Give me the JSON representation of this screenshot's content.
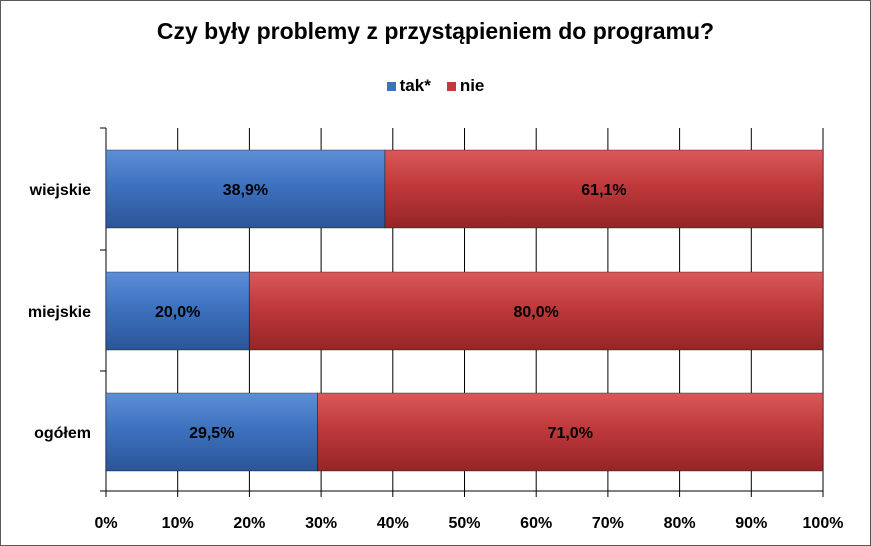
{
  "chart_data": {
    "type": "bar",
    "orientation": "horizontal",
    "stacked": true,
    "title": "Czy były problemy z przystąpieniem do programu?",
    "categories": [
      "wiejskie",
      "miejskie",
      "ogółem"
    ],
    "series": [
      {
        "name": "tak*",
        "values": [
          38.9,
          20.0,
          29.5
        ],
        "labels": [
          "38,9%",
          "20,0%",
          "29,5%"
        ],
        "color": "#3d72c0"
      },
      {
        "name": "nie",
        "values": [
          61.1,
          80.0,
          71.0
        ],
        "labels": [
          "61,1%",
          "80,0%",
          "71,0%"
        ],
        "color": "#c0393b"
      }
    ],
    "xlim": [
      0,
      100
    ],
    "x_ticks": [
      "0%",
      "10%",
      "20%",
      "30%",
      "40%",
      "50%",
      "60%",
      "70%",
      "80%",
      "90%",
      "100%"
    ],
    "grid": true,
    "legend_position": "top"
  }
}
